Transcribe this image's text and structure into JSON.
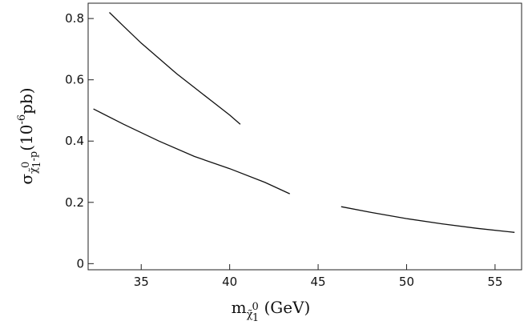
{
  "chart_data": {
    "type": "line",
    "title": "",
    "xlabel": {
      "base": "m",
      "sub": "χ̃",
      "subsup": "0",
      "subsub": "1",
      "rest": " (GeV)"
    },
    "ylabel": {
      "base": "σ",
      "sub": "χ̃",
      "subsup": "0",
      "subsub": "1",
      "subrest": "-p",
      "rest": "(10",
      "power": "-6",
      "unit": "pb)"
    },
    "xlim": [
      32,
      56.5
    ],
    "ylim": [
      -0.02,
      0.85
    ],
    "xticks": [
      35,
      40,
      45,
      50,
      55
    ],
    "yticks": [
      0,
      0.2,
      0.4,
      0.6,
      0.8
    ],
    "ytick_labels": [
      "0",
      "0.2",
      "0.4",
      "0.6",
      "0.8"
    ],
    "grid": false,
    "series": [
      {
        "x": [
          33.2,
          34,
          35,
          36,
          37,
          38,
          39,
          40,
          40.6
        ],
        "y": [
          0.82,
          0.775,
          0.72,
          0.67,
          0.62,
          0.575,
          0.53,
          0.485,
          0.455
        ]
      },
      {
        "x": [
          32.3,
          34,
          36,
          38,
          40,
          42,
          43.4
        ],
        "y": [
          0.505,
          0.455,
          0.4,
          0.35,
          0.31,
          0.265,
          0.228
        ]
      },
      {
        "x": [
          46.3,
          48,
          50,
          52,
          54,
          56.1
        ],
        "y": [
          0.186,
          0.167,
          0.147,
          0.13,
          0.115,
          0.102
        ]
      }
    ],
    "colors": {
      "axis": "#222222",
      "line": "#111111"
    }
  }
}
